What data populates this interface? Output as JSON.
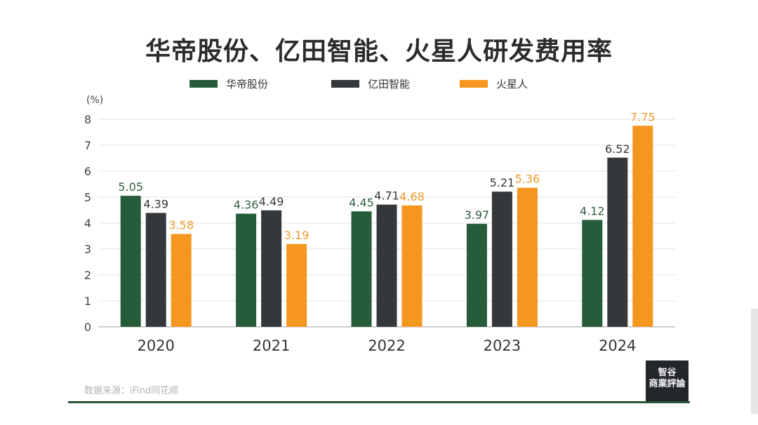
{
  "title": "华帝股份、亿田智能、火星人研发费用率",
  "source": "数据来源：iFind同花顺",
  "logo": {
    "line1": "智谷",
    "line2": "商業評論"
  },
  "chart_data": {
    "type": "bar",
    "title": "华帝股份、亿田智能、火星人研发费用率",
    "ylabel": "(%)",
    "xlabel": "",
    "categories": [
      "2020",
      "2021",
      "2022",
      "2023",
      "2024"
    ],
    "ylim": [
      0,
      8
    ],
    "yticks": [
      0,
      1,
      2,
      3,
      4,
      5,
      6,
      7,
      8
    ],
    "grid": true,
    "legend_position": "top-center",
    "series": [
      {
        "name": "华帝股份",
        "color": "#275c3a",
        "label_color": "#2f5e40",
        "values": [
          5.05,
          4.36,
          4.45,
          3.97,
          4.12
        ]
      },
      {
        "name": "亿田智能",
        "color": "#34383b",
        "label_color": "#34383b",
        "values": [
          4.39,
          4.49,
          4.71,
          5.21,
          6.52
        ]
      },
      {
        "name": "火星人",
        "color": "#f5961e",
        "label_color": "#f39a2b",
        "values": [
          3.58,
          3.19,
          4.68,
          5.36,
          7.75
        ]
      }
    ]
  }
}
